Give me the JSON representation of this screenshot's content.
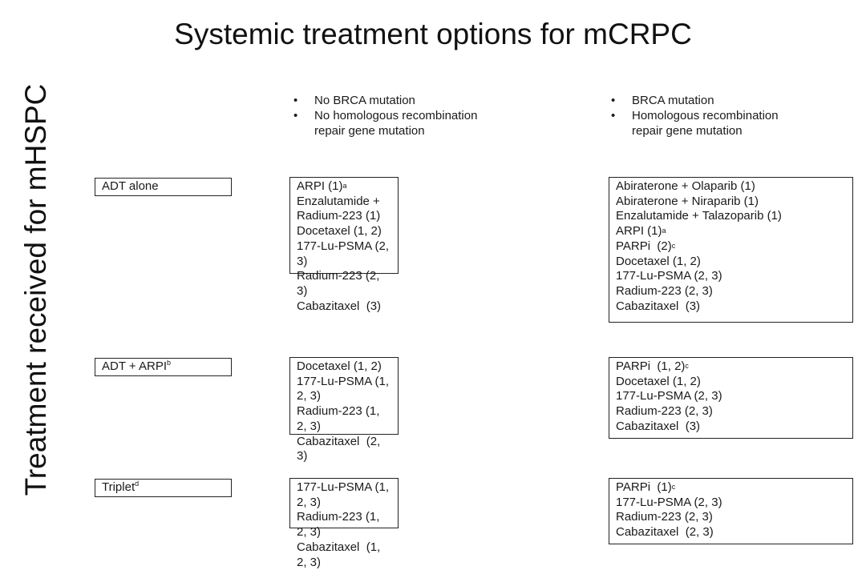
{
  "title": "Systemic treatment options for mCRPC",
  "ylabel": "Treatment received for mHSPC",
  "columns": [
    {
      "bullets": [
        "No BRCA mutation",
        "No homologous recombination repair gene mutation"
      ]
    },
    {
      "bullets": [
        "BRCA mutation",
        "Homologous recombination repair gene mutation"
      ]
    }
  ],
  "rows": [
    {
      "label": "ADT alone",
      "label_sup": "",
      "no_brca": [
        {
          "t": "ARPI (1)",
          "s": "a"
        },
        {
          "t": "Enzalutamide + Radium-223 (1)"
        },
        {
          "t": "Docetaxel (1, 2)"
        },
        {
          "t": "177-Lu-PSMA (2, 3)"
        },
        {
          "t": "Radium-223 (2, 3)"
        },
        {
          "t": "Cabazitaxel  (3)"
        }
      ],
      "brca": [
        {
          "t": "Abiraterone + Olaparib (1)"
        },
        {
          "t": "Abiraterone + Niraparib (1)"
        },
        {
          "t": "Enzalutamide + Talazoparib (1)"
        },
        {
          "t": "ARPI (1)",
          "s": "a"
        },
        {
          "t": "PARPi  (2)",
          "s": "c"
        },
        {
          "t": "Docetaxel (1, 2)"
        },
        {
          "t": "177-Lu-PSMA (2, 3)"
        },
        {
          "t": "Radium-223 (2, 3)"
        },
        {
          "t": "Cabazitaxel  (3)"
        }
      ]
    },
    {
      "label": "ADT + ARPI",
      "label_sup": "b",
      "no_brca": [
        {
          "t": "Docetaxel (1, 2)"
        },
        {
          "t": "177-Lu-PSMA (1, 2, 3)"
        },
        {
          "t": "Radium-223 (1, 2, 3)"
        },
        {
          "t": "Cabazitaxel  (2, 3)"
        }
      ],
      "brca": [
        {
          "t": "PARPi  (1, 2)",
          "s": "c"
        },
        {
          "t": "Docetaxel (1, 2)"
        },
        {
          "t": "177-Lu-PSMA (2, 3)"
        },
        {
          "t": "Radium-223 (2, 3)"
        },
        {
          "t": "Cabazitaxel  (3)"
        }
      ]
    },
    {
      "label": "Triplet",
      "label_sup": "d",
      "no_brca": [
        {
          "t": "177-Lu-PSMA (1, 2, 3)"
        },
        {
          "t": "Radium-223 (1, 2, 3)"
        },
        {
          "t": "Cabazitaxel  (1, 2, 3)"
        }
      ],
      "brca": [
        {
          "t": "PARPi  (1)",
          "s": "c"
        },
        {
          "t": "177-Lu-PSMA (2, 3)"
        },
        {
          "t": "Radium-223 (2, 3)"
        },
        {
          "t": "Cabazitaxel  (2, 3)"
        }
      ]
    }
  ]
}
